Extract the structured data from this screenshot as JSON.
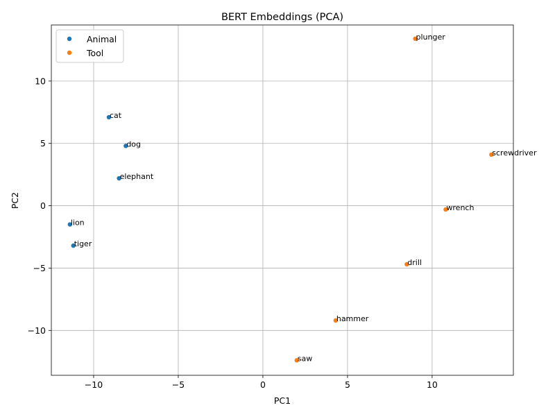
{
  "chart_data": {
    "type": "scatter",
    "title": "BERT Embeddings (PCA)",
    "xlabel": "PC1",
    "ylabel": "PC2",
    "xlim": [
      -12.5,
      14.8
    ],
    "ylim": [
      -13.6,
      14.5
    ],
    "xticks": [
      -10,
      -5,
      0,
      5,
      10
    ],
    "yticks": [
      -10,
      -5,
      0,
      5,
      10
    ],
    "xtick_labels": [
      "−10",
      "−5",
      "0",
      "5",
      "10"
    ],
    "ytick_labels": [
      "−10",
      "−5",
      "0",
      "5",
      "10"
    ],
    "grid": true,
    "legend_position": "top-left",
    "series": [
      {
        "name": "Animal",
        "color": "#1f77b4",
        "points": [
          {
            "label": "cat",
            "x": -9.1,
            "y": 7.1
          },
          {
            "label": "dog",
            "x": -8.1,
            "y": 4.8
          },
          {
            "label": "elephant",
            "x": -8.5,
            "y": 2.2
          },
          {
            "label": "lion",
            "x": -11.4,
            "y": -1.5
          },
          {
            "label": "tiger",
            "x": -11.2,
            "y": -3.2
          }
        ]
      },
      {
        "name": "Tool",
        "color": "#ff7f0e",
        "points": [
          {
            "label": "plunger",
            "x": 9.0,
            "y": 13.4
          },
          {
            "label": "screwdriver",
            "x": 13.5,
            "y": 4.1
          },
          {
            "label": "wrench",
            "x": 10.8,
            "y": -0.3
          },
          {
            "label": "drill",
            "x": 8.5,
            "y": -4.7
          },
          {
            "label": "hammer",
            "x": 4.3,
            "y": -9.2
          },
          {
            "label": "saw",
            "x": 2.0,
            "y": -12.4
          }
        ]
      }
    ]
  }
}
